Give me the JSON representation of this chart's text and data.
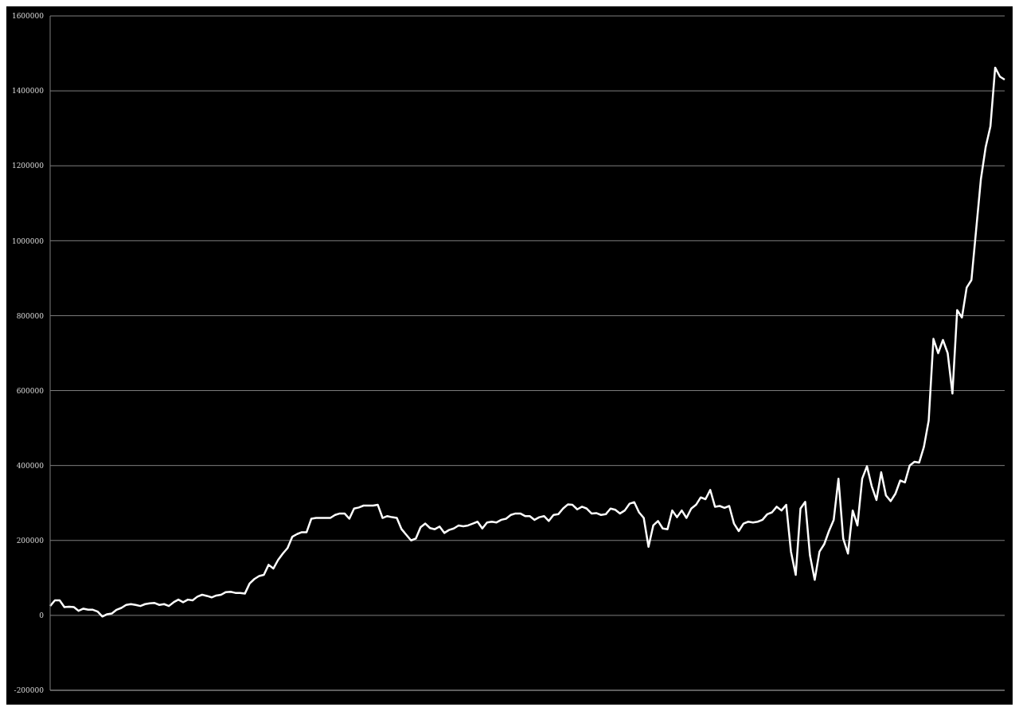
{
  "chart_data": {
    "type": "line",
    "categories": [
      null,
      null,
      null,
      null,
      null,
      null,
      null,
      null,
      null,
      null,
      null,
      null,
      null,
      null,
      null,
      null,
      null,
      null,
      null,
      null,
      null,
      null,
      null,
      null,
      null,
      null,
      null,
      null,
      null,
      null,
      null,
      null,
      null,
      null,
      null,
      null,
      null,
      null,
      null,
      null,
      null,
      null,
      null,
      null,
      null,
      null,
      null,
      null,
      null,
      null,
      null,
      null,
      null,
      null,
      null,
      null,
      null,
      null,
      null,
      null,
      null,
      null,
      null,
      null,
      null,
      null,
      null,
      null,
      null,
      null,
      null,
      null,
      null,
      null,
      null,
      null,
      null,
      null,
      null,
      null,
      null,
      null,
      null,
      null,
      null,
      null,
      null,
      null,
      null,
      null,
      null,
      null,
      null,
      null,
      null,
      null,
      null,
      null,
      null,
      null,
      null,
      null,
      null,
      null,
      null,
      null,
      null,
      null,
      null,
      null,
      null,
      null,
      null,
      null,
      null,
      null,
      null,
      null,
      null,
      null,
      null,
      null,
      null,
      null,
      null,
      null,
      null,
      null,
      null,
      null,
      null,
      null,
      null,
      null,
      null,
      null,
      null,
      null,
      null,
      null,
      null,
      null,
      null,
      null,
      null,
      null,
      null,
      null,
      null,
      null,
      null,
      null,
      null,
      null,
      null,
      null,
      null,
      null,
      null,
      null,
      null,
      null,
      null,
      null,
      null,
      null,
      null,
      null,
      null,
      null,
      null,
      null,
      null,
      null,
      null,
      null,
      null,
      null,
      null,
      null,
      null,
      null,
      null,
      null,
      null,
      null,
      null,
      null,
      null,
      null,
      null,
      null,
      null,
      null,
      null,
      null,
      null,
      null,
      null,
      null,
      null,
      null
    ],
    "series": [
      {
        "color": "#ffffff",
        "values": [
          25000,
          40000,
          40000,
          22000,
          23000,
          22000,
          12000,
          18000,
          15000,
          15000,
          10000,
          -3000,
          3000,
          5000,
          15000,
          20000,
          28000,
          30000,
          28000,
          25000,
          30000,
          32000,
          33000,
          28000,
          30000,
          25000,
          35000,
          42000,
          35000,
          42000,
          40000,
          50000,
          55000,
          52000,
          48000,
          53000,
          55000,
          62000,
          63000,
          60000,
          60000,
          58000,
          85000,
          97000,
          105000,
          108000,
          135000,
          125000,
          148000,
          165000,
          180000,
          210000,
          217000,
          222000,
          222000,
          258000,
          260000,
          260000,
          260000,
          260000,
          268000,
          272000,
          272000,
          258000,
          285000,
          288000,
          293000,
          293000,
          293000,
          295000,
          260000,
          265000,
          262000,
          260000,
          230000,
          215000,
          200000,
          205000,
          235000,
          245000,
          233000,
          230000,
          237000,
          220000,
          228000,
          232000,
          240000,
          238000,
          240000,
          245000,
          250000,
          232000,
          248000,
          250000,
          248000,
          255000,
          258000,
          268000,
          272000,
          272000,
          265000,
          265000,
          255000,
          262000,
          265000,
          252000,
          268000,
          270000,
          285000,
          296000,
          295000,
          283000,
          290000,
          285000,
          272000,
          273000,
          268000,
          270000,
          285000,
          282000,
          272000,
          280000,
          298000,
          302000,
          275000,
          260000,
          183000,
          240000,
          252000,
          232000,
          230000,
          280000,
          262000,
          280000,
          260000,
          285000,
          295000,
          315000,
          310000,
          335000,
          290000,
          292000,
          287000,
          292000,
          245000,
          225000,
          245000,
          250000,
          248000,
          250000,
          255000,
          270000,
          275000,
          290000,
          280000,
          295000,
          170000,
          108000,
          285000,
          303000,
          160000,
          95000,
          170000,
          190000,
          225000,
          255000,
          365000,
          205000,
          165000,
          280000,
          240000,
          365000,
          398000,
          345000,
          308000,
          382000,
          320000,
          305000,
          325000,
          360000,
          355000,
          400000,
          410000,
          408000,
          450000,
          520000,
          738000,
          700000,
          735000,
          700000,
          592000,
          815000,
          795000,
          875000,
          895000,
          1030000,
          1165000,
          1250000,
          1305000,
          1462000,
          1438000,
          1430000
        ]
      }
    ],
    "ylim": [
      -200000,
      1600000
    ],
    "yticks": [
      -200000,
      0,
      200000,
      400000,
      600000,
      800000,
      1000000,
      1200000,
      1400000,
      1600000
    ],
    "grid": "y",
    "tick_labels": "y"
  }
}
